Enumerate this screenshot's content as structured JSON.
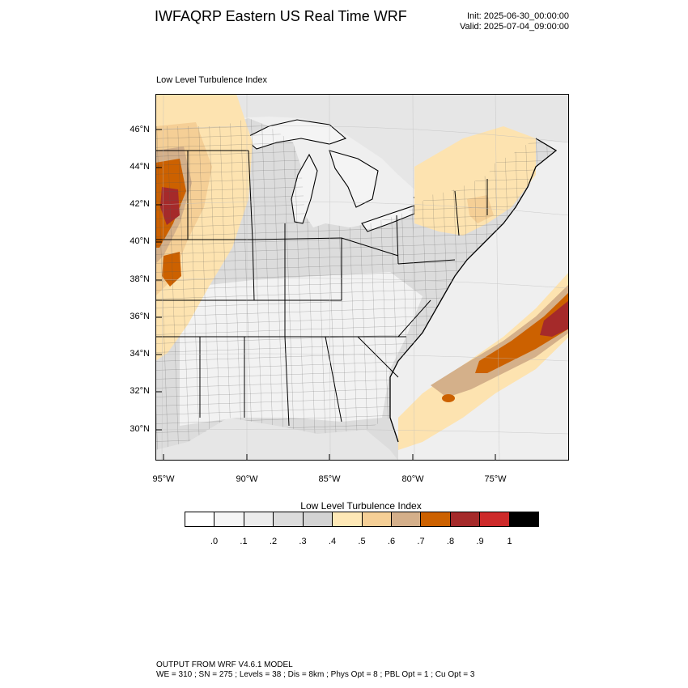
{
  "header": {
    "title": "IWFAQRP Eastern US Real Time WRF",
    "init": "Init: 2025-06-30_00:00:00",
    "valid": "Valid: 2025-07-04_09:00:00"
  },
  "map": {
    "field_label": "Low Level Turbulence Index",
    "lat_ticks": [
      "46°N",
      "44°N",
      "42°N",
      "40°N",
      "38°N",
      "36°N",
      "34°N",
      "32°N",
      "30°N"
    ],
    "lon_ticks": [
      "95°W",
      "90°W",
      "85°W",
      "80°W",
      "75°W"
    ],
    "colors": {
      "land_gray": "#dcdcdc",
      "light_gray": "#ececec",
      "ocean": "#f4f4f4",
      "tan_light": "#fde3b0",
      "tan": "#f5cf96",
      "tan_dark": "#d4b08a",
      "orange": "#cc6100",
      "dark_red": "#a52a2a"
    }
  },
  "colorbar": {
    "title": "Low Level Turbulence Index",
    "labels": [
      ".0",
      ".1",
      ".2",
      ".3",
      ".4",
      ".5",
      ".6",
      ".7",
      ".8",
      ".9",
      "1"
    ],
    "colors": [
      "#ffffff",
      "#f5f5f5",
      "#ececec",
      "#dcdcdc",
      "#d3d3d3",
      "#fee8b6",
      "#f5cf96",
      "#d4af8a",
      "#cc6100",
      "#a52a2a",
      "#cd2a2a",
      "#000000"
    ]
  },
  "footer": {
    "line1": "OUTPUT FROM WRF V4.6.1 MODEL",
    "line2": "WE = 310 ; SN = 275 ; Levels = 38 ; Dis = 8km ; Phys Opt = 8 ; PBL Opt = 1 ; Cu Opt = 3"
  }
}
